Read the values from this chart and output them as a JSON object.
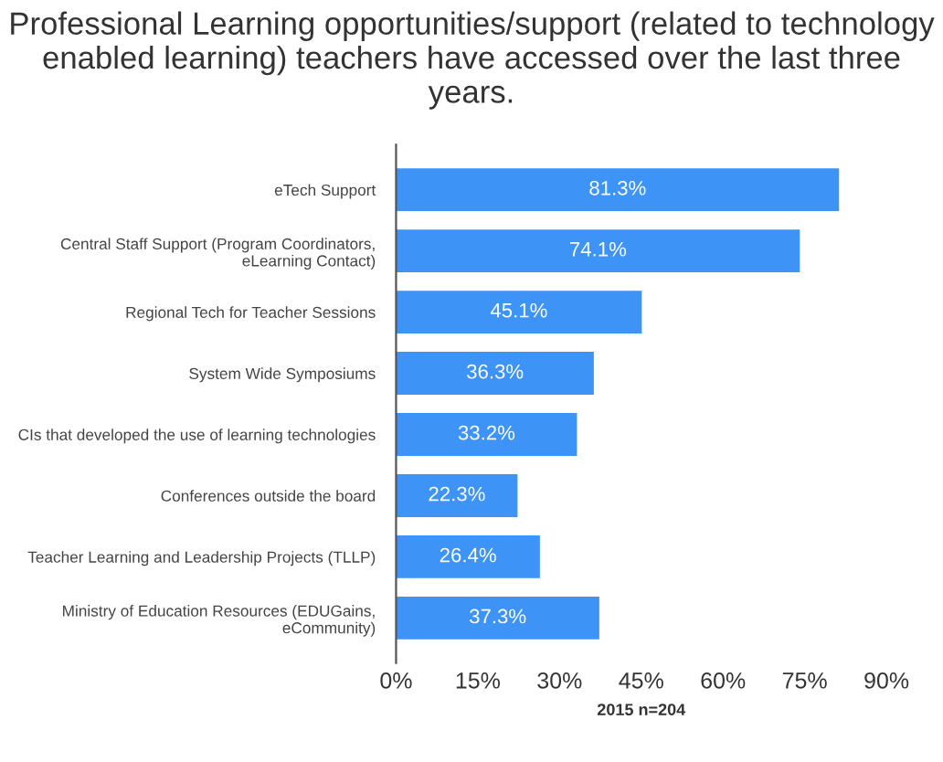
{
  "chart_data": {
    "type": "bar",
    "orientation": "horizontal",
    "title": "Professional Learning opportunities/support (related to technology enabled learning) teachers have accessed over the last three years.",
    "categories": [
      "eTech Support",
      "Central Staff Support (Program Coordinators, eLearning Contact)",
      "Regional Tech for Teacher Sessions",
      "System Wide Symposiums",
      "CIs that developed the use of learning technologies",
      "Conferences outside the board",
      "Teacher Learning and Leadership Projects (TLLP)",
      "Ministry of Education Resources (EDUGains, eCommunity)"
    ],
    "values": [
      81.3,
      74.1,
      45.1,
      36.3,
      33.2,
      22.3,
      26.4,
      37.3
    ],
    "value_labels": [
      "81.3%",
      "74.1%",
      "45.1%",
      "36.3%",
      "33.2%",
      "22.3%",
      "26.4%",
      "37.3%"
    ],
    "color": "#3d94f6",
    "xlabel": "2015 n=204",
    "xlim": [
      0,
      90
    ],
    "xticks": [
      {
        "value": 0,
        "label": "0%"
      },
      {
        "value": 15,
        "label": "15%"
      },
      {
        "value": 30,
        "label": "30%"
      },
      {
        "value": 45,
        "label": "45%"
      },
      {
        "value": 60,
        "label": "60%"
      },
      {
        "value": 75,
        "label": "75%"
      },
      {
        "value": 90,
        "label": "90%"
      }
    ],
    "grid": false
  }
}
